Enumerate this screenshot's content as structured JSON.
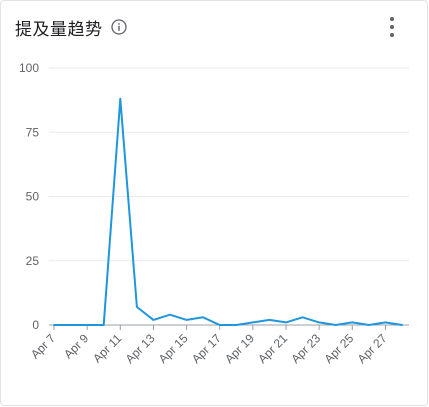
{
  "header": {
    "title": "提及量趋势",
    "info_icon": "info-icon",
    "menu_icon": "more-vert-icon"
  },
  "colors": {
    "line": "#1f96dd",
    "grid": "#e8eaed",
    "axis": "#9aa0a6",
    "text": "#5f6368"
  },
  "chart_data": {
    "type": "line",
    "title": "提及量趋势",
    "xlabel": "",
    "ylabel": "",
    "ylim": [
      0,
      100
    ],
    "yticks": [
      "0",
      "25",
      "50",
      "75",
      "100"
    ],
    "grid": true,
    "x": [
      "Apr 7",
      "Apr 8",
      "Apr 9",
      "Apr 10",
      "Apr 11",
      "Apr 12",
      "Apr 13",
      "Apr 14",
      "Apr 15",
      "Apr 16",
      "Apr 17",
      "Apr 18",
      "Apr 19",
      "Apr 20",
      "Apr 21",
      "Apr 22",
      "Apr 23",
      "Apr 24",
      "Apr 25",
      "Apr 26",
      "Apr 27",
      "Apr 28"
    ],
    "xtick_labels": [
      "Apr 7",
      "Apr 9",
      "Apr 11",
      "Apr 13",
      "Apr 15",
      "Apr 17",
      "Apr 19",
      "Apr 21",
      "Apr 23",
      "Apr 25",
      "Apr 27"
    ],
    "series": [
      {
        "values": [
          0,
          0,
          0,
          0,
          88,
          7,
          2,
          4,
          2,
          3,
          0,
          0,
          1,
          2,
          1,
          3,
          1,
          0,
          1,
          0,
          1,
          0
        ]
      }
    ]
  }
}
